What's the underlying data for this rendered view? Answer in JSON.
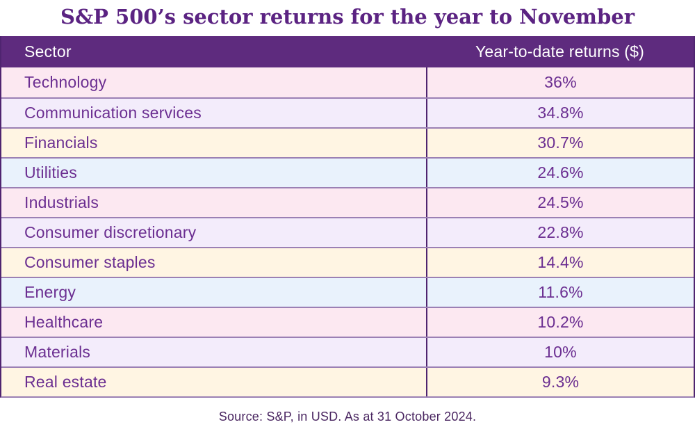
{
  "title": "S&P 500’s sector returns for the year to November",
  "header": {
    "sector_label": "Sector",
    "returns_label": "Year-to-date returns ($)"
  },
  "source_note": "Source: S&P, in USD. As at 31 October 2024.",
  "chart_data": {
    "type": "table",
    "title": "S&P 500’s sector returns for the year to November",
    "columns": [
      "Sector",
      "Year-to-date returns ($)"
    ],
    "rows": [
      [
        "Technology",
        "36%"
      ],
      [
        "Communication services",
        "34.8%"
      ],
      [
        "Financials",
        "30.7%"
      ],
      [
        "Utilities",
        "24.6%"
      ],
      [
        "Industrials",
        "24.5%"
      ],
      [
        "Consumer discretionary",
        "22.8%"
      ],
      [
        "Consumer staples",
        "14.4%"
      ],
      [
        "Energy",
        "11.6%"
      ],
      [
        "Healthcare",
        "10.2%"
      ],
      [
        "Materials",
        "10%"
      ],
      [
        "Real estate",
        "9.3%"
      ]
    ],
    "values_numeric_percent": [
      36,
      34.8,
      30.7,
      24.6,
      24.5,
      22.8,
      14.4,
      11.6,
      10.2,
      10,
      9.3
    ],
    "source": "Source: S&P, in USD. As at 31 October 2024."
  },
  "colors": {
    "header_bg": "#5E2B7E",
    "header_text": "#FFFFFF",
    "row_cycle": [
      "#FCE8F1",
      "#F3ECFB",
      "#FFF5E3",
      "#E9F2FC"
    ],
    "cell_text": "#6B2E91",
    "title_text": "#5B2382",
    "source_text": "#4A2661",
    "row_border": "#9B80B4",
    "column_border": "#4F2470"
  }
}
